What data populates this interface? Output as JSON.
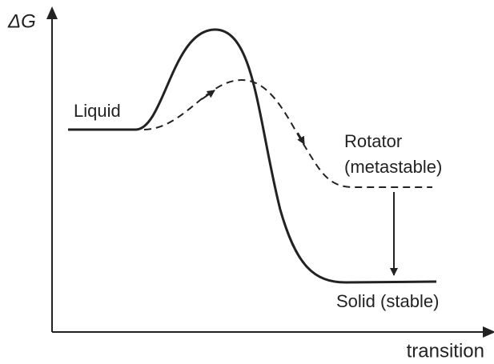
{
  "axes": {
    "y_label": "ΔG",
    "x_label": "transition"
  },
  "labels": {
    "liquid": "Liquid",
    "rotator": [
      "Rotator",
      "(metastable)"
    ],
    "solid": "Solid (stable)"
  }
}
